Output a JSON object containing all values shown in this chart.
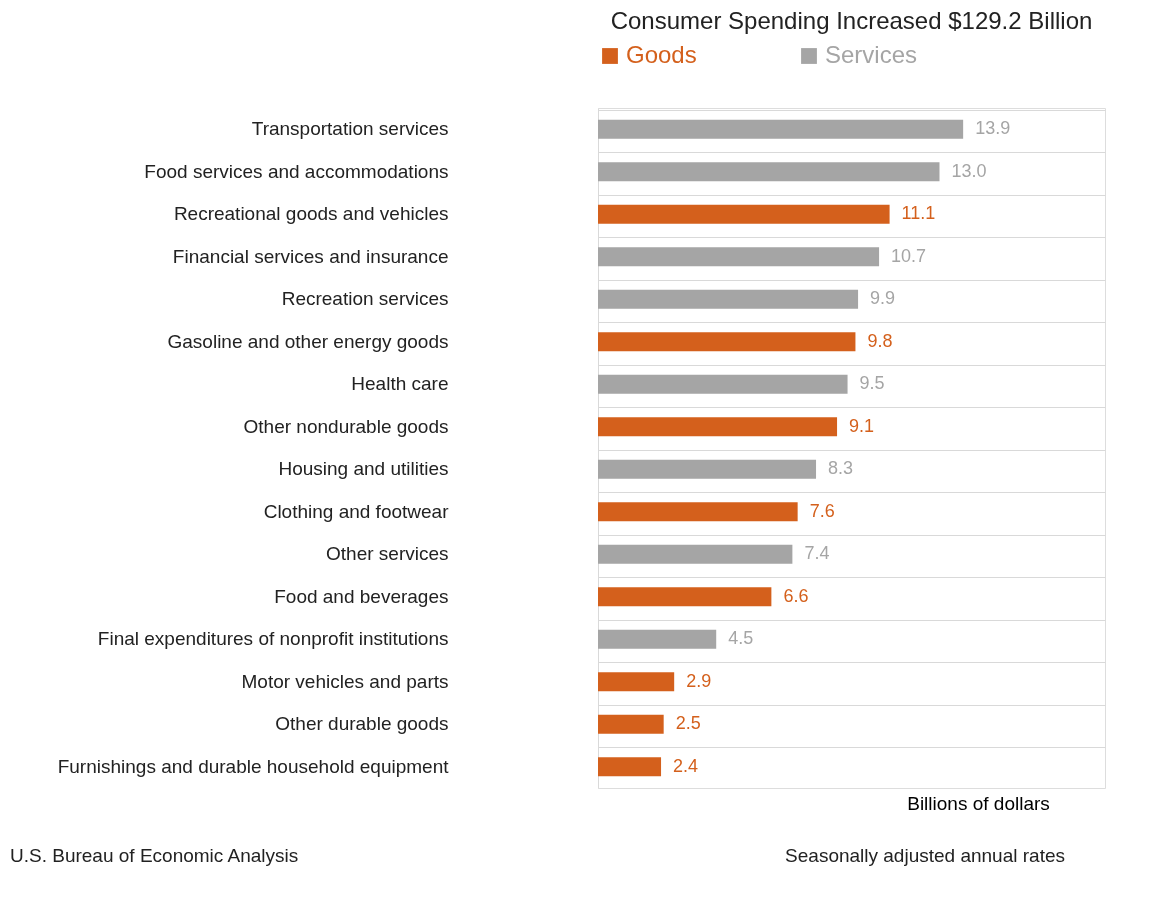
{
  "chart_data": {
    "type": "bar",
    "orientation": "horizontal",
    "title": "Consumer Spending Increased $129.2 Billion",
    "categories": [
      "Transportation services",
      "Food services and accommodations",
      "Recreational goods and vehicles",
      "Financial services and insurance",
      "Recreation services",
      "Gasoline and other energy goods",
      "Health care",
      "Other nondurable goods",
      "Housing and utilities",
      "Clothing and footwear",
      "Other services",
      "Food and beverages",
      "Final expenditures of nonprofit institutions",
      "Motor vehicles and parts",
      "Other durable goods",
      "Furnishings and durable household equipment"
    ],
    "series": [
      {
        "name": "Goods",
        "color": "#d4601c",
        "values": [
          null,
          null,
          11.1,
          null,
          null,
          9.8,
          null,
          9.1,
          null,
          7.6,
          null,
          6.6,
          null,
          2.9,
          2.5,
          2.4
        ],
        "value_labels": [
          null,
          null,
          "11.1",
          null,
          null,
          "9.8",
          null,
          "9.1",
          null,
          "7.6",
          null,
          "6.6",
          null,
          "2.9",
          "2.5",
          "2.4"
        ]
      },
      {
        "name": "Services",
        "color": "#a5a5a5",
        "values": [
          13.9,
          13.0,
          null,
          10.7,
          9.9,
          null,
          9.5,
          null,
          8.3,
          null,
          7.4,
          null,
          4.5,
          null,
          null,
          null
        ],
        "value_labels": [
          "13.9",
          "13.0",
          null,
          "10.7",
          "9.9",
          null,
          "9.5",
          null,
          "8.3",
          null,
          "7.4",
          null,
          "4.5",
          null,
          null,
          null
        ]
      }
    ],
    "xlim": [
      0,
      19.3
    ],
    "xlabel": "Billions of dollars",
    "legend": "top",
    "grid": "y",
    "tick_labels": "y",
    "annotations": [
      "U.S. Bureau of Economic Analysis",
      "Seasonally adjusted annual rates"
    ]
  }
}
